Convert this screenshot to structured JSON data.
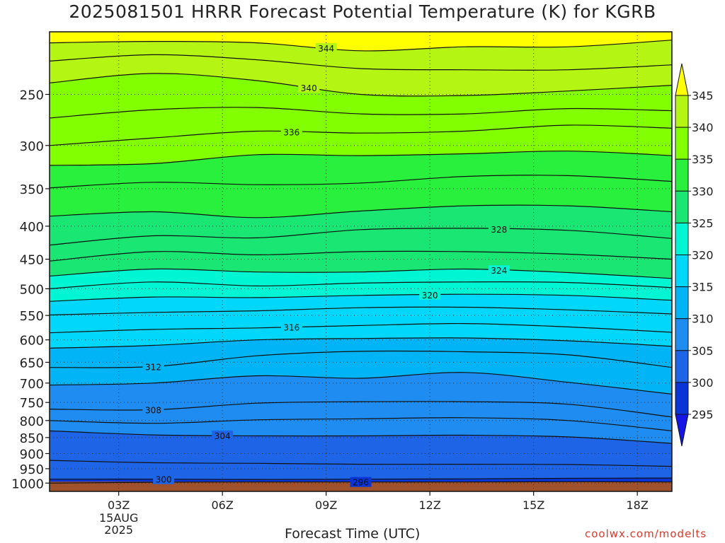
{
  "title": "2025081501 HRRR Forecast Potential Temperature (K) for KGRB",
  "xlabel": "Forecast Time (UTC)",
  "credit": "coolwx.com/modelts",
  "chart_data": {
    "type": "contour-filled",
    "title": "2025081501 HRRR Forecast Potential Temperature (K) for KGRB",
    "xlabel": "Forecast Time (UTC)",
    "ylabel": "",
    "y_scale": "log",
    "y_inverted": true,
    "xlim_hours": [
      1,
      19
    ],
    "ylim": [
      1030,
      200
    ],
    "x_ticks": [
      {
        "hour": 3,
        "label": "03Z",
        "sub": [
          "15AUG",
          "2025"
        ]
      },
      {
        "hour": 6,
        "label": "06Z"
      },
      {
        "hour": 9,
        "label": "09Z"
      },
      {
        "hour": 12,
        "label": "12Z"
      },
      {
        "hour": 15,
        "label": "15Z"
      },
      {
        "hour": 18,
        "label": "18Z"
      }
    ],
    "y_ticks": [
      250,
      300,
      350,
      400,
      450,
      500,
      550,
      600,
      650,
      700,
      750,
      800,
      850,
      900,
      950,
      1000
    ],
    "grid": true,
    "colorbar": {
      "levels": [
        295,
        300,
        305,
        310,
        315,
        320,
        325,
        330,
        335,
        340,
        345
      ],
      "colors": [
        "#1515e6",
        "#0a35d6",
        "#1e64e6",
        "#1e8cf0",
        "#00b4f5",
        "#00d7fa",
        "#00f5d2",
        "#19e673",
        "#28f03c",
        "#82ff00",
        "#b4f514",
        "#ffff00"
      ],
      "extend": "both"
    },
    "ground_color": "#a0522d",
    "contour_interval": 2,
    "contours": [
      {
        "theta": 296,
        "p": [
          1000,
          997,
          996,
          996,
          996,
          995,
          996
        ],
        "label_at": 10
      },
      {
        "theta": 300,
        "p": [
          986,
          986,
          987,
          986,
          985,
          983,
          982
        ],
        "label_at": 4.3
      },
      {
        "theta": 302,
        "p": [
          922,
          930,
          932,
          935,
          935,
          936,
          942
        ]
      },
      {
        "theta": 304,
        "p": [
          830,
          842,
          845,
          845,
          843,
          848,
          868
        ],
        "label_at": 6
      },
      {
        "theta": 306,
        "p": [
          800,
          808,
          798,
          795,
          792,
          800,
          830
        ]
      },
      {
        "theta": 308,
        "p": [
          768,
          770,
          752,
          748,
          748,
          755,
          790
        ],
        "label_at": 4
      },
      {
        "theta": 310,
        "p": [
          705,
          700,
          682,
          688,
          674,
          698,
          728
        ]
      },
      {
        "theta": 312,
        "p": [
          662,
          660,
          635,
          625,
          626,
          633,
          662
        ],
        "label_at": 4
      },
      {
        "theta": 314,
        "p": [
          618,
          612,
          600,
          597,
          596,
          602,
          614
        ]
      },
      {
        "theta": 316,
        "p": [
          585,
          578,
          575,
          570,
          566,
          573,
          584
        ],
        "label_at": 8
      },
      {
        "theta": 318,
        "p": [
          549,
          544,
          541,
          535,
          534,
          539,
          547
        ]
      },
      {
        "theta": 320,
        "p": [
          523,
          515,
          516,
          512,
          510,
          512,
          521
        ],
        "label_at": 12
      },
      {
        "theta": 322,
        "p": [
          500,
          488,
          495,
          490,
          488,
          489,
          498
        ]
      },
      {
        "theta": 324,
        "p": [
          478,
          466,
          471,
          471,
          466,
          472,
          482
        ],
        "label_at": 14
      },
      {
        "theta": 326,
        "p": [
          453,
          438,
          443,
          438,
          438,
          442,
          450
        ]
      },
      {
        "theta": 328,
        "p": [
          428,
          414,
          417,
          405,
          403,
          406,
          418
        ],
        "label_at": 14
      },
      {
        "theta": 330,
        "p": [
          386,
          380,
          388,
          379,
          372,
          372,
          380
        ]
      },
      {
        "theta": 332,
        "p": [
          349,
          342,
          345,
          343,
          335,
          334,
          341
        ]
      },
      {
        "theta": 334,
        "p": [
          322,
          320,
          310,
          311,
          309,
          306,
          311
        ]
      },
      {
        "theta": 336,
        "p": [
          300,
          292,
          285,
          287,
          285,
          279,
          282
        ],
        "label_at": 8
      },
      {
        "theta": 338,
        "p": [
          272,
          264,
          262,
          268,
          268,
          263,
          265
        ]
      },
      {
        "theta": 340,
        "p": [
          240,
          232,
          238,
          250,
          251,
          247,
          242
        ],
        "label_at": 8.5
      },
      {
        "theta": 342,
        "p": [
          222,
          217,
          221,
          228,
          229,
          229,
          225
        ]
      },
      {
        "theta": 344,
        "p": [
          208,
          207,
          208,
          214,
          211,
          211,
          206
        ],
        "label_at": 9
      }
    ],
    "contour_hours": [
      1,
      4,
      7,
      10,
      13,
      16,
      19
    ]
  }
}
